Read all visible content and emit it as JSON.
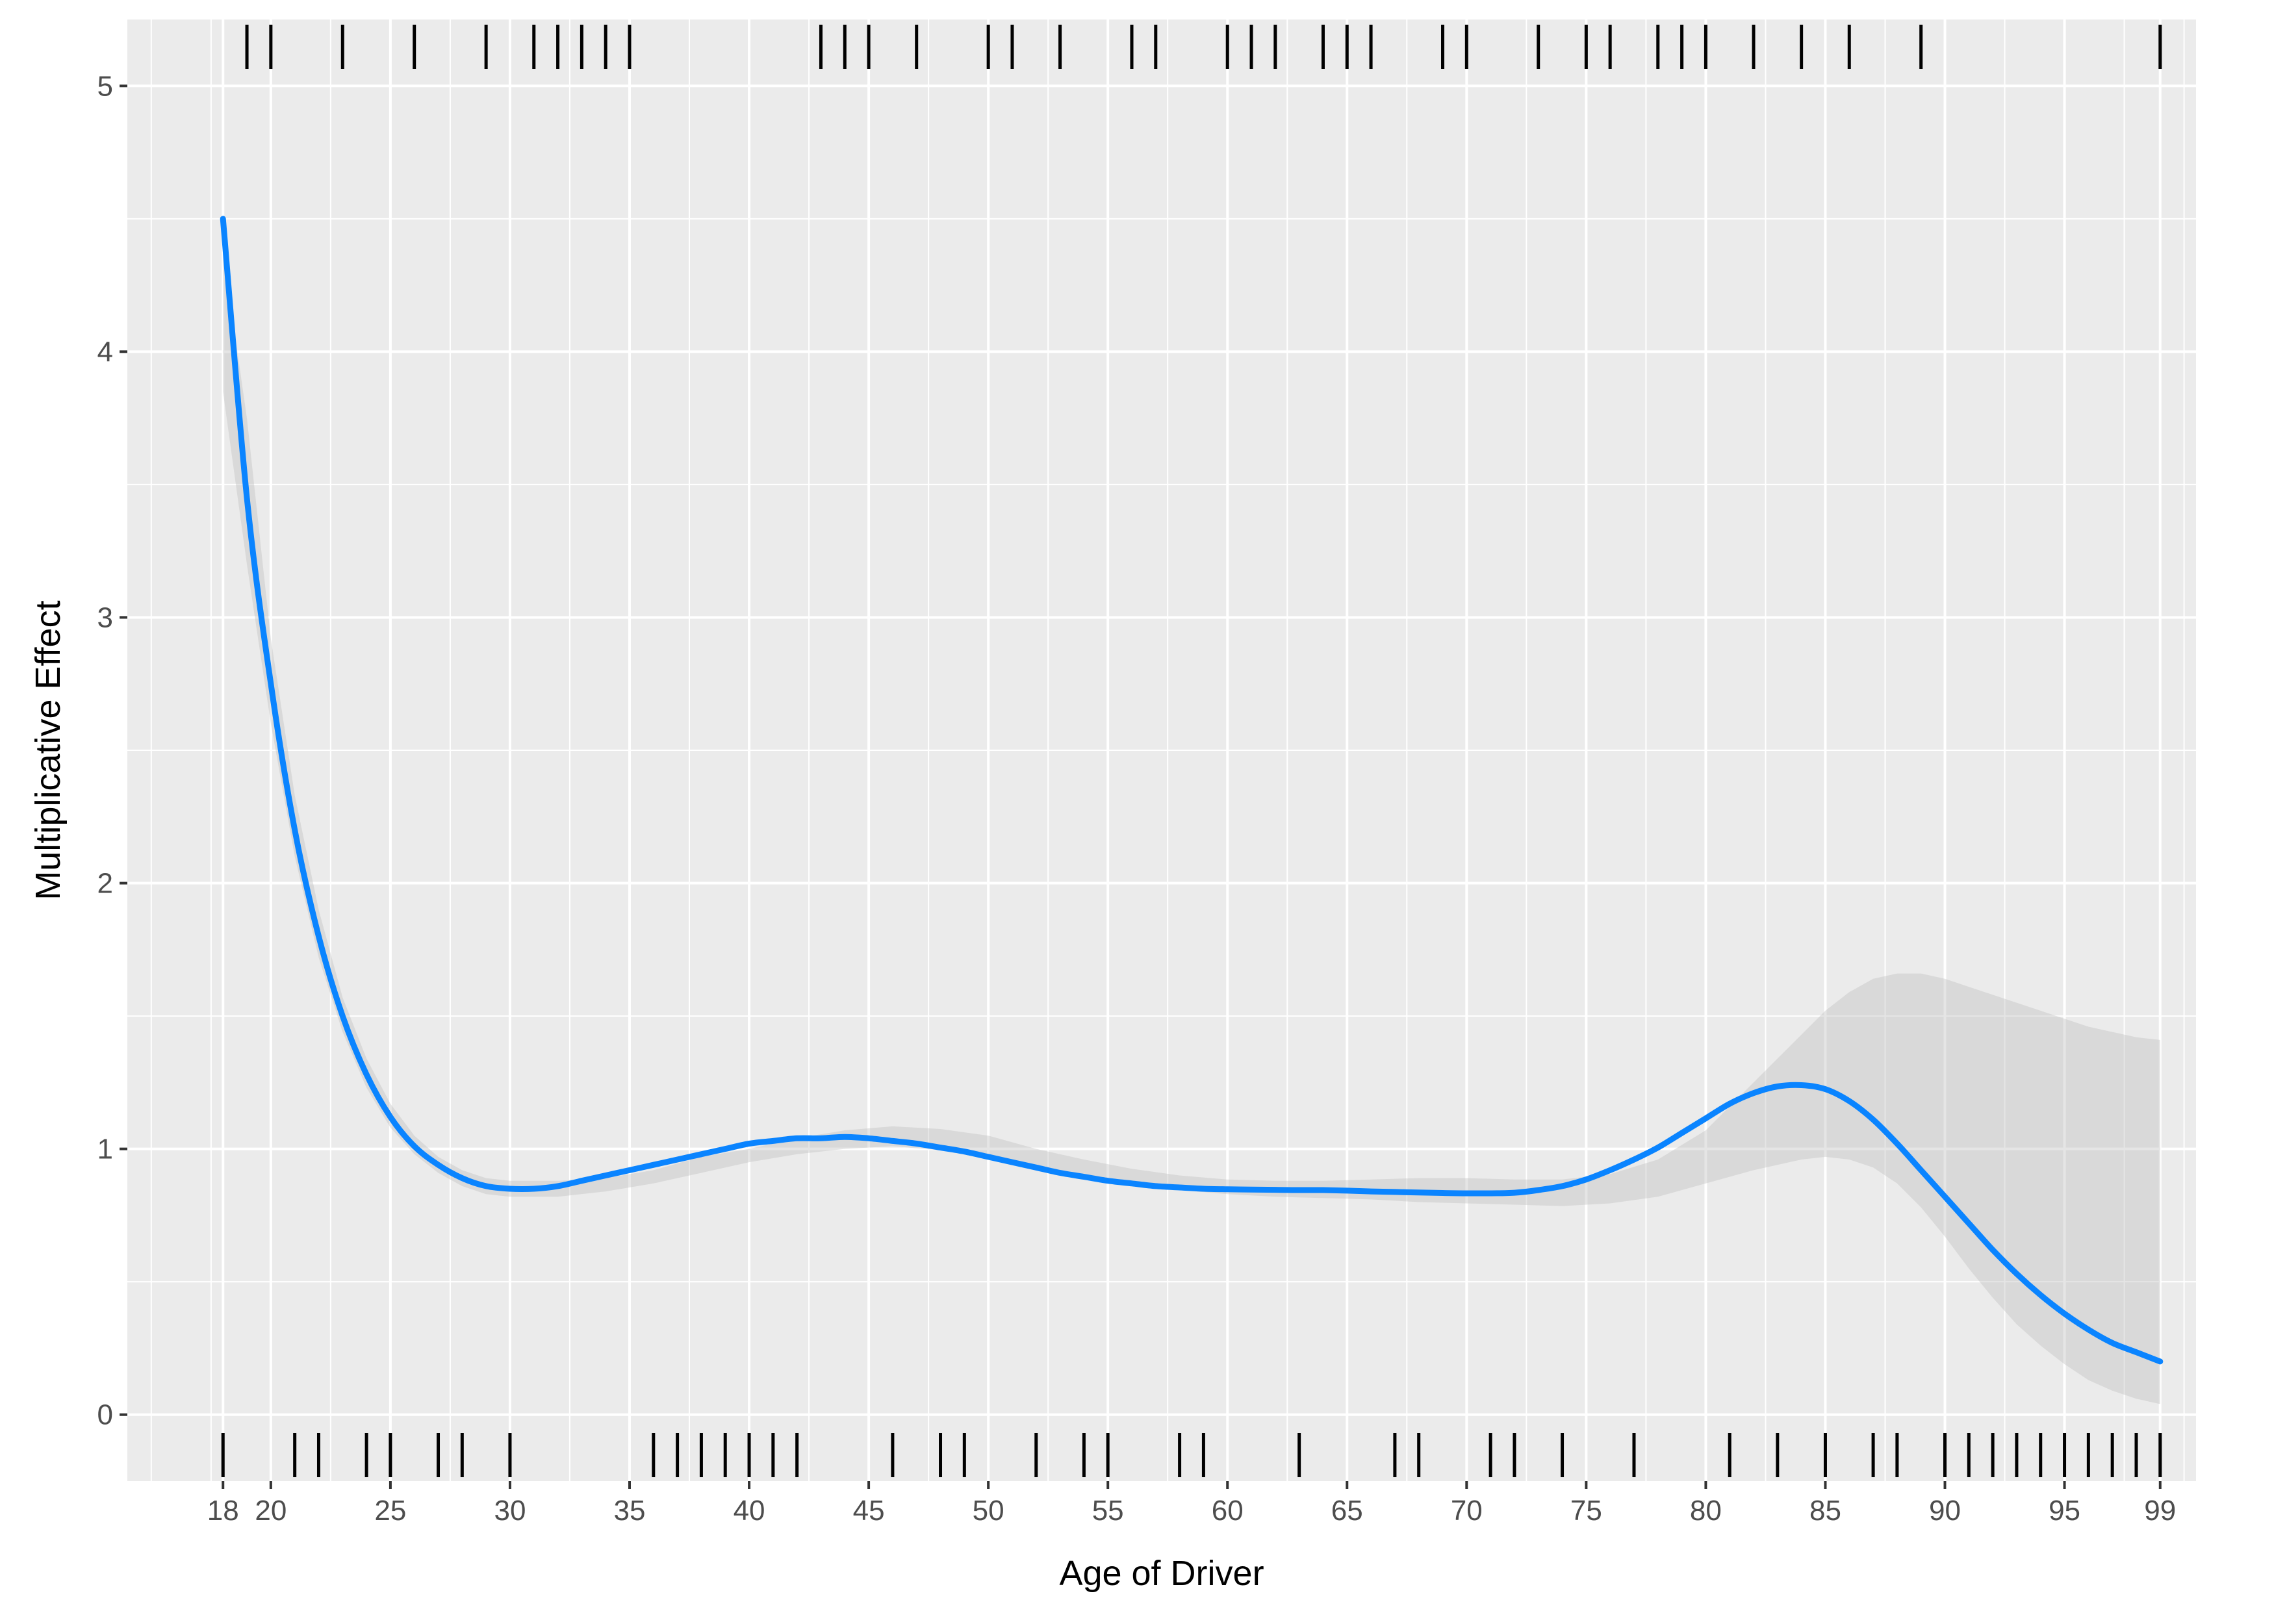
{
  "chart_data": {
    "type": "line",
    "title": "",
    "xlabel": "Age of Driver",
    "ylabel": "Multiplicative Effect",
    "xlim": [
      14,
      100.5
    ],
    "ylim": [
      -0.25,
      5.25
    ],
    "x_ticks": [
      18,
      20,
      25,
      30,
      35,
      40,
      45,
      50,
      55,
      60,
      65,
      70,
      75,
      80,
      85,
      90,
      95,
      99
    ],
    "x_tick_labels": [
      "18",
      "20",
      "25",
      "30",
      "35",
      "40",
      "45",
      "50",
      "55",
      "60",
      "65",
      "70",
      "75",
      "80",
      "85",
      "90",
      "95",
      "99"
    ],
    "y_ticks": [
      0,
      1,
      2,
      3,
      4,
      5
    ],
    "y_tick_labels": [
      "0",
      "1",
      "2",
      "3",
      "4",
      "5"
    ],
    "grid": true,
    "series": [
      {
        "color": "#0a84ff",
        "x": [
          18,
          19,
          20,
          21,
          22,
          23,
          24,
          25,
          26,
          27,
          28,
          29,
          30,
          31,
          32,
          33,
          34,
          35,
          36,
          37,
          38,
          39,
          40,
          41,
          42,
          43,
          44,
          45,
          46,
          47,
          48,
          49,
          50,
          51,
          52,
          53,
          54,
          55,
          56,
          57,
          58,
          59,
          60,
          61,
          62,
          63,
          64,
          65,
          66,
          67,
          68,
          69,
          70,
          71,
          72,
          73,
          74,
          75,
          76,
          77,
          78,
          79,
          80,
          81,
          82,
          83,
          84,
          85,
          86,
          87,
          88,
          89,
          90,
          91,
          92,
          93,
          94,
          95,
          96,
          97,
          98,
          99
        ],
        "y": [
          4.5,
          3.45,
          2.75,
          2.2,
          1.8,
          1.5,
          1.28,
          1.12,
          1.01,
          0.94,
          0.89,
          0.86,
          0.85,
          0.85,
          0.86,
          0.88,
          0.9,
          0.92,
          0.94,
          0.96,
          0.98,
          1.0,
          1.02,
          1.03,
          1.04,
          1.04,
          1.045,
          1.04,
          1.03,
          1.02,
          1.005,
          0.99,
          0.97,
          0.95,
          0.93,
          0.91,
          0.895,
          0.88,
          0.87,
          0.86,
          0.855,
          0.85,
          0.848,
          0.847,
          0.846,
          0.845,
          0.845,
          0.843,
          0.84,
          0.838,
          0.836,
          0.834,
          0.833,
          0.833,
          0.835,
          0.845,
          0.86,
          0.885,
          0.92,
          0.96,
          1.005,
          1.06,
          1.115,
          1.17,
          1.21,
          1.235,
          1.24,
          1.225,
          1.18,
          1.11,
          1.02,
          0.92,
          0.82,
          0.72,
          0.62,
          0.53,
          0.45,
          0.38,
          0.32,
          0.27,
          0.235,
          0.2
        ]
      }
    ],
    "confidence_band": {
      "color": "#bdbdbd",
      "x": [
        18,
        19,
        20,
        21,
        22,
        23,
        24,
        25,
        26,
        27,
        28,
        29,
        30,
        32,
        34,
        36,
        38,
        40,
        42,
        44,
        46,
        48,
        50,
        52,
        54,
        56,
        58,
        60,
        62,
        64,
        66,
        68,
        70,
        72,
        74,
        76,
        78,
        80,
        82,
        84,
        85,
        86,
        87,
        88,
        89,
        90,
        91,
        92,
        93,
        94,
        95,
        96,
        97,
        98,
        99
      ],
      "lower": [
        3.85,
        3.2,
        2.6,
        2.1,
        1.72,
        1.44,
        1.23,
        1.08,
        0.98,
        0.91,
        0.86,
        0.83,
        0.82,
        0.82,
        0.84,
        0.87,
        0.91,
        0.95,
        0.98,
        1.0,
        1.01,
        0.995,
        0.97,
        0.93,
        0.895,
        0.865,
        0.845,
        0.83,
        0.82,
        0.815,
        0.81,
        0.8,
        0.795,
        0.79,
        0.785,
        0.795,
        0.82,
        0.87,
        0.92,
        0.96,
        0.97,
        0.96,
        0.93,
        0.87,
        0.78,
        0.67,
        0.55,
        0.44,
        0.34,
        0.26,
        0.19,
        0.13,
        0.09,
        0.06,
        0.04
      ],
      "upper": [
        4.38,
        3.75,
        2.92,
        2.33,
        1.9,
        1.57,
        1.34,
        1.17,
        1.05,
        0.97,
        0.92,
        0.89,
        0.88,
        0.88,
        0.89,
        0.92,
        0.97,
        1.0,
        1.04,
        1.07,
        1.085,
        1.075,
        1.05,
        1.0,
        0.96,
        0.925,
        0.9,
        0.885,
        0.88,
        0.88,
        0.885,
        0.89,
        0.89,
        0.885,
        0.885,
        0.905,
        0.96,
        1.07,
        1.25,
        1.43,
        1.52,
        1.59,
        1.64,
        1.66,
        1.66,
        1.64,
        1.61,
        1.58,
        1.55,
        1.52,
        1.49,
        1.46,
        1.44,
        1.42,
        1.41
      ]
    },
    "rug_top": [
      19,
      20,
      23,
      26,
      29,
      31,
      32,
      33,
      34,
      35,
      43,
      44,
      45,
      47,
      50,
      51,
      53,
      56,
      57,
      60,
      61,
      62,
      64,
      65,
      66,
      69,
      70,
      73,
      75,
      76,
      78,
      79,
      80,
      82,
      84,
      86,
      89,
      99
    ],
    "rug_bottom": [
      18,
      21,
      22,
      24,
      25,
      27,
      28,
      30,
      36,
      37,
      38,
      39,
      40,
      41,
      42,
      46,
      48,
      49,
      52,
      54,
      55,
      58,
      59,
      63,
      67,
      68,
      71,
      72,
      74,
      77,
      81,
      83,
      85,
      87,
      88,
      90,
      91,
      92,
      93,
      94,
      95,
      96,
      97,
      98,
      99
    ]
  }
}
